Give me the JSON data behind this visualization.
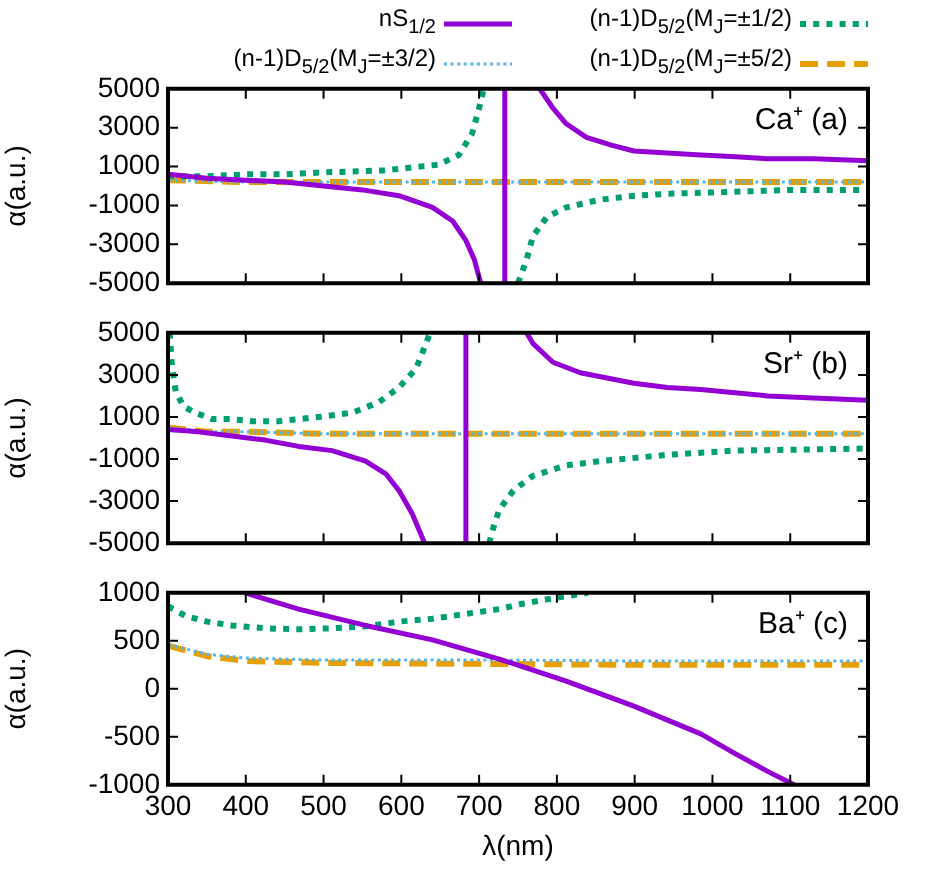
{
  "chart_data": [
    {
      "type": "line",
      "ylabel": "α(a.u.)",
      "xlim": [
        300,
        1200
      ],
      "xticks": [
        300,
        400,
        500,
        600,
        700,
        800,
        900,
        1000,
        1100,
        1200
      ],
      "ylim": [
        -5000,
        5000
      ],
      "yticks": [
        -5000,
        -3000,
        -1000,
        1000,
        3000,
        5000
      ],
      "tick_labels": "y",
      "legend": "top",
      "annotations": [
        "Ca⁺ (a)"
      ],
      "series": [
        {
          "name": "nS$_{1/2}$",
          "color": "#9400d3",
          "line_style": "solid",
          "x": [
            300,
            350,
            400,
            450,
            500,
            550,
            597,
            640,
            666,
            683,
            694,
            702,
            null,
            733,
            733,
            null,
            778,
            795,
            812,
            838,
            870,
            899,
            942,
            985,
            1030,
            1071,
            1130,
            1200
          ],
          "values": [
            600,
            400,
            300,
            200,
            0,
            -200,
            -500,
            -1100,
            -1800,
            -2800,
            -3800,
            -5000,
            null,
            -5000,
            5000,
            null,
            5000,
            4000,
            3200,
            2500,
            2100,
            1800,
            1700,
            1600,
            1500,
            1400,
            1400,
            1300
          ]
        },
        {
          "name": "(n-1)D$_{5/2}$(M$_{J}$=±1/2)",
          "color": "#009e73",
          "line_style": "dotted",
          "x": [
            300,
            350,
            400,
            450,
            500,
            578,
            648,
            674,
            691,
            700,
            706,
            null,
            750,
            761,
            769,
            787,
            812,
            856,
            900,
            942,
            1028,
            1100,
            1200
          ],
          "values": [
            500,
            500,
            600,
            600,
            700,
            800,
            1100,
            1600,
            2700,
            4000,
            5000,
            null,
            -5000,
            -3800,
            -2600,
            -1600,
            -1100,
            -700,
            -500,
            -400,
            -300,
            -200,
            -200
          ]
        },
        {
          "name": "(n-1)D$_{5/2}$(M$_{J}$=±3/2)",
          "color": "#56b4e9",
          "line_style": "dotted",
          "x": [
            300,
            400,
            500,
            700,
            900,
            1200
          ],
          "values": [
            300,
            200,
            200,
            200,
            200,
            200
          ]
        },
        {
          "name": "(n-1)D$_{5/2}$(M$_{J}$=±5/2)",
          "color": "#e69f00",
          "line_style": "dashed",
          "x": [
            300,
            400,
            500,
            700,
            900,
            1200
          ],
          "values": [
            300,
            200,
            200,
            200,
            200,
            200
          ]
        }
      ]
    },
    {
      "type": "line",
      "ylabel": "α(a.u.)",
      "xlim": [
        300,
        1200
      ],
      "xticks": [
        300,
        400,
        500,
        600,
        700,
        800,
        900,
        1000,
        1100,
        1200
      ],
      "ylim": [
        -5000,
        5000
      ],
      "yticks": [
        -5000,
        -3000,
        -1000,
        1000,
        3000,
        5000
      ],
      "tick_labels": "y",
      "annotations": [
        "Sr⁺ (b)"
      ],
      "series": [
        {
          "color": "#9400d3",
          "line_style": "solid",
          "x": [
            300,
            339,
            382,
            425,
            468,
            511,
            554,
            580,
            597,
            614,
            630,
            null,
            683,
            683,
            null,
            761,
            769,
            795,
            830,
            899,
            942,
            985,
            1071,
            1130,
            1200
          ],
          "values": [
            400,
            300,
            100,
            -100,
            -400,
            -600,
            -1100,
            -1700,
            -2500,
            -3600,
            -5000,
            null,
            -5000,
            5000,
            null,
            5000,
            4500,
            3600,
            3100,
            2600,
            2400,
            2300,
            2000,
            1900,
            1800
          ]
        },
        {
          "color": "#009e73",
          "line_style": "dotted",
          "x": [
            302,
            305,
            310,
            320,
            335,
            356,
            380,
            408,
            442,
            494,
            537,
            571,
            597,
            619,
            637,
            null,
            713,
            718,
            726,
            744,
            769,
            812,
            856,
            942,
            1028,
            1200
          ],
          "values": [
            5000,
            3500,
            2200,
            1500,
            1200,
            900,
            900,
            800,
            800,
            1000,
            1200,
            1700,
            2400,
            3300,
            5000,
            null,
            -5000,
            -4300,
            -3400,
            -2500,
            -1800,
            -1300,
            -1100,
            -800,
            -600,
            -500
          ]
        },
        {
          "color": "#56b4e9",
          "line_style": "dotted",
          "x": [
            300,
            350,
            400,
            500,
            700,
            1200
          ],
          "values": [
            500,
            300,
            300,
            200,
            200,
            200
          ]
        },
        {
          "color": "#e69f00",
          "line_style": "dashed",
          "x": [
            300,
            350,
            400,
            500,
            700,
            1200
          ],
          "values": [
            500,
            300,
            300,
            200,
            200,
            200
          ]
        }
      ]
    },
    {
      "type": "line",
      "xlabel": "λ(nm)",
      "ylabel": "α(a.u.)",
      "xlim": [
        300,
        1200
      ],
      "xticks": [
        300,
        400,
        500,
        600,
        700,
        800,
        900,
        1000,
        1100,
        1200
      ],
      "ylim": [
        -1000,
        1000
      ],
      "yticks": [
        -1000,
        -500,
        0,
        500,
        1000
      ],
      "annotations": [
        "Ba⁺ (c)"
      ],
      "series": [
        {
          "color": "#9400d3",
          "line_style": "solid",
          "x": [
            399,
            468,
            554,
            640,
            726,
            812,
            899,
            985,
            1028,
            1071,
            1105
          ],
          "values": [
            1000,
            830,
            660,
            510,
            310,
            80,
            -180,
            -470,
            -670,
            -860,
            -1000
          ]
        },
        {
          "color": "#009e73",
          "line_style": "dotted",
          "x": [
            300,
            322,
            350,
            382,
            425,
            468,
            511,
            554,
            597,
            640,
            683,
            726,
            752,
            800,
            840
          ],
          "values": [
            860,
            760,
            700,
            660,
            630,
            620,
            630,
            650,
            700,
            730,
            780,
            830,
            880,
            950,
            1000
          ]
        },
        {
          "color": "#56b4e9",
          "line_style": "dotted",
          "x": [
            300,
            350,
            400,
            500,
            700,
            900,
            1200
          ],
          "values": [
            460,
            360,
            320,
            300,
            300,
            290,
            290
          ]
        },
        {
          "color": "#e69f00",
          "line_style": "dashed",
          "x": [
            300,
            350,
            400,
            500,
            700,
            900,
            1200
          ],
          "values": [
            450,
            340,
            290,
            270,
            260,
            250,
            250
          ]
        }
      ]
    }
  ]
}
